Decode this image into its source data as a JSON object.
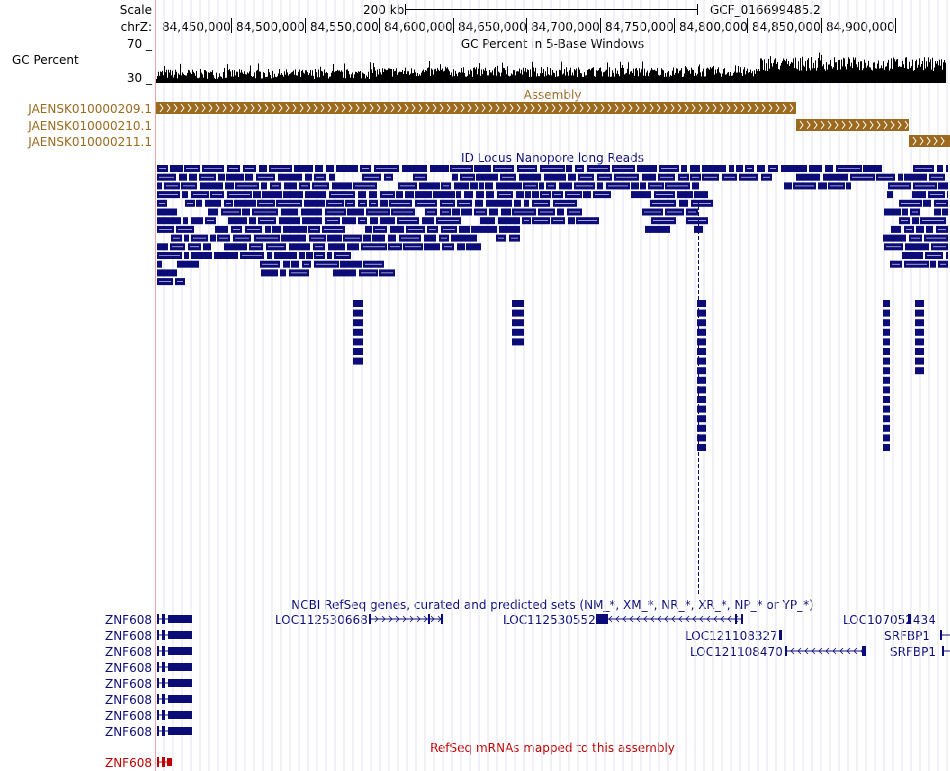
{
  "ruler": {
    "scale_label": "Scale",
    "scale_value": "200 kb",
    "assembly": "GCF_016699485.2",
    "chrom_label": "chrZ:",
    "ticks": [
      "84,450,000",
      "84,500,000",
      "84,550,000",
      "84,600,000",
      "84,650,000",
      "84,700,000",
      "84,750,000",
      "84,800,000",
      "84,850,000",
      "84,900,000"
    ]
  },
  "gc_track": {
    "title": "GC Percent in 5-Base Windows",
    "side_label": "GC Percent",
    "y_max_label": "70 _",
    "y_min_label": "30 _",
    "y_range": [
      30,
      70
    ]
  },
  "assembly_track": {
    "title": "Assembly",
    "color": "#9b6a1e",
    "contigs": [
      {
        "name": "JAENSK010000209.1"
      },
      {
        "name": "JAENSK010000210.1"
      },
      {
        "name": "JAENSK010000211.1"
      }
    ]
  },
  "reads_track": {
    "title": "ID Locus Nanopore long Reads",
    "color": "#0c0c78"
  },
  "refseq_track": {
    "title": "NCBI RefSeq genes, curated and predicted sets (NM_*, XM_*, NR_*, XR_*, NP_* or YP_*)",
    "color": "#0c0c78",
    "left_labels": [
      "ZNF608",
      "ZNF608",
      "ZNF608",
      "ZNF608",
      "ZNF608",
      "ZNF608",
      "ZNF608",
      "ZNF608"
    ],
    "genes": [
      "LOC112530668",
      "LOC112530552",
      "LOC121108327",
      "LOC121108470",
      "LOC107052434",
      "SRFBP1",
      "SRFBP1"
    ]
  },
  "mrna_track": {
    "title": "RefSeq mRNAs mapped to this assembly",
    "color": "#c00000",
    "left_label": "ZNF608"
  }
}
